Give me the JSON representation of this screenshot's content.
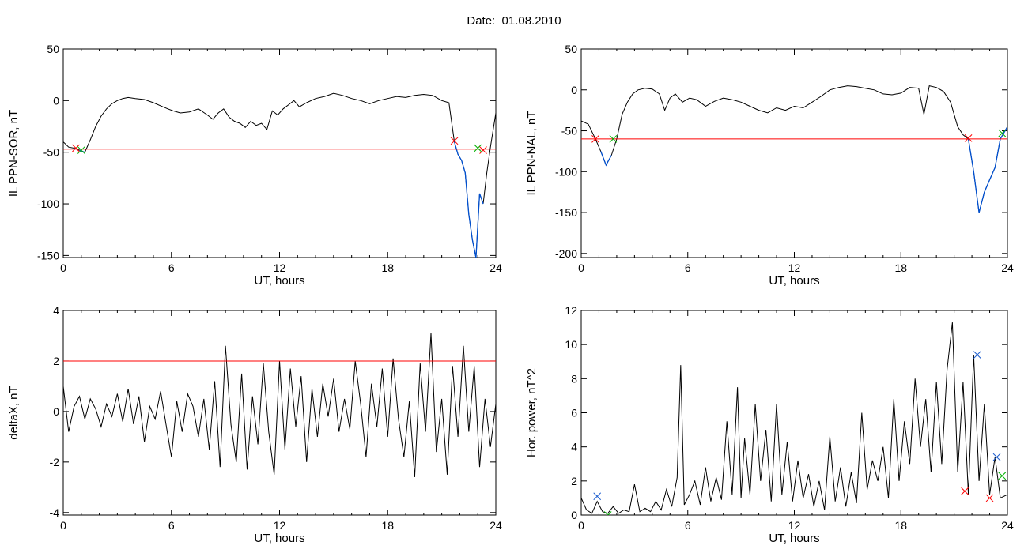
{
  "page": {
    "title": "Date:  01.08.2010"
  },
  "colors": {
    "trace": "#000000",
    "threshold": "#ff0000",
    "onset": "#0050d0",
    "cross_red": "#ff0000",
    "cross_green": "#00b000",
    "cross_blue": "#2060d0",
    "frame": "#000000"
  },
  "chart_data": [
    {
      "type": "line",
      "xlabel": "UT, hours",
      "ylabel": "IL PPN-SOR, nT",
      "xlim": [
        0,
        24
      ],
      "ylim": [
        -152,
        50
      ],
      "xticks": [
        0,
        6,
        12,
        18,
        24
      ],
      "yticks": [
        50,
        0,
        -50,
        -100,
        -150
      ],
      "threshold": -47,
      "series": [
        {
          "x": [
            0,
            0.3,
            0.6,
            0.9,
            1.2,
            1.5,
            1.8,
            2.1,
            2.4,
            2.7,
            3.0,
            3.3,
            3.6,
            4.0,
            4.5,
            5.0,
            5.4,
            5.8,
            6.1,
            6.5,
            7.0,
            7.5,
            8.0,
            8.3,
            8.6,
            8.9,
            9.2,
            9.5,
            9.8,
            10.1,
            10.4,
            10.7,
            11.0,
            11.3,
            11.6,
            11.9,
            12.2,
            12.5,
            12.8,
            13.1,
            13.5,
            14.0,
            14.5,
            15.0,
            15.5,
            16.0,
            16.5,
            17.0,
            17.5,
            18.0,
            18.5,
            19.0,
            19.5,
            20.0,
            20.5,
            21.0,
            21.4,
            21.7,
            21.9,
            22.1,
            22.3,
            22.5,
            22.7,
            22.9,
            23.1,
            23.3,
            23.5,
            23.7,
            24.0
          ],
          "y": [
            -40,
            -45,
            -46,
            -48,
            -50,
            -38,
            -25,
            -15,
            -8,
            -3,
            0,
            2,
            3,
            2,
            1,
            -2,
            -5,
            -8,
            -10,
            -12,
            -11,
            -8,
            -14,
            -18,
            -12,
            -8,
            -16,
            -20,
            -22,
            -26,
            -20,
            -24,
            -22,
            -28,
            -10,
            -14,
            -8,
            -4,
            0,
            -6,
            -2,
            2,
            4,
            7,
            5,
            2,
            0,
            -3,
            0,
            2,
            4,
            3,
            5,
            6,
            5,
            0,
            -2,
            -40,
            -52,
            -58,
            -70,
            -110,
            -135,
            -152,
            -90,
            -100,
            -70,
            -45,
            -12
          ]
        }
      ],
      "onset_segments": [
        [
          0.8,
          1.2
        ],
        [
          21.7,
          23.3
        ]
      ],
      "markers": [
        {
          "x": 0.7,
          "y": -46,
          "color": "red"
        },
        {
          "x": 1.0,
          "y": -48,
          "color": "green"
        },
        {
          "x": 21.7,
          "y": -39,
          "color": "red"
        },
        {
          "x": 23.0,
          "y": -46,
          "color": "green"
        },
        {
          "x": 23.3,
          "y": -48,
          "color": "red"
        }
      ]
    },
    {
      "type": "line",
      "xlabel": "UT, hours",
      "ylabel": "IL PPN-NAL, nT",
      "xlim": [
        0,
        24
      ],
      "ylim": [
        -205,
        50
      ],
      "xticks": [
        0,
        6,
        12,
        18,
        24
      ],
      "yticks": [
        50,
        0,
        -50,
        -100,
        -150,
        -200
      ],
      "threshold": -60,
      "series": [
        {
          "x": [
            0,
            0.4,
            0.8,
            1.1,
            1.4,
            1.7,
            2.0,
            2.3,
            2.6,
            2.9,
            3.2,
            3.6,
            4.0,
            4.4,
            4.7,
            5.0,
            5.3,
            5.7,
            6.1,
            6.5,
            7.0,
            7.5,
            8.0,
            8.5,
            9.0,
            9.5,
            10.0,
            10.5,
            11.0,
            11.5,
            12.0,
            12.5,
            13.0,
            13.5,
            14.0,
            14.5,
            15.0,
            15.5,
            16.0,
            16.5,
            17.0,
            17.5,
            18.0,
            18.5,
            19.0,
            19.3,
            19.6,
            20.0,
            20.4,
            20.8,
            21.2,
            21.5,
            21.8,
            22.1,
            22.4,
            22.7,
            23.0,
            23.3,
            23.6,
            24.0
          ],
          "y": [
            -38,
            -42,
            -60,
            -75,
            -92,
            -80,
            -60,
            -30,
            -15,
            -5,
            0,
            2,
            1,
            -5,
            -25,
            -10,
            -5,
            -15,
            -10,
            -12,
            -20,
            -14,
            -10,
            -12,
            -15,
            -20,
            -25,
            -28,
            -22,
            -25,
            -20,
            -22,
            -15,
            -8,
            0,
            3,
            5,
            4,
            2,
            0,
            -5,
            -6,
            -4,
            3,
            2,
            -30,
            5,
            3,
            -2,
            -15,
            -45,
            -55,
            -60,
            -100,
            -150,
            -125,
            -110,
            -95,
            -60,
            -45
          ]
        }
      ],
      "onset_segments": [
        [
          1.0,
          1.7
        ],
        [
          21.8,
          24.0
        ]
      ],
      "markers": [
        {
          "x": 0.8,
          "y": -60,
          "color": "red"
        },
        {
          "x": 1.8,
          "y": -60,
          "color": "green"
        },
        {
          "x": 21.8,
          "y": -59,
          "color": "red"
        },
        {
          "x": 23.7,
          "y": -53,
          "color": "green"
        }
      ]
    },
    {
      "type": "line",
      "xlabel": "UT, hours",
      "ylabel": "deltaX, nT",
      "xlim": [
        0,
        24
      ],
      "ylim": [
        -4.1,
        4
      ],
      "xticks": [
        0,
        6,
        12,
        18,
        24
      ],
      "yticks": [
        4,
        2,
        0,
        -2,
        -4
      ],
      "threshold": 2,
      "series": [
        {
          "x": [
            0,
            0.3,
            0.6,
            0.9,
            1.2,
            1.5,
            1.8,
            2.1,
            2.4,
            2.7,
            3.0,
            3.3,
            3.6,
            3.9,
            4.2,
            4.5,
            4.8,
            5.1,
            5.4,
            5.7,
            6.0,
            6.3,
            6.6,
            6.9,
            7.2,
            7.5,
            7.8,
            8.1,
            8.4,
            8.7,
            9.0,
            9.3,
            9.6,
            9.9,
            10.2,
            10.5,
            10.8,
            11.1,
            11.4,
            11.7,
            12.0,
            12.3,
            12.6,
            12.9,
            13.2,
            13.5,
            13.8,
            14.1,
            14.4,
            14.7,
            15.0,
            15.3,
            15.6,
            15.9,
            16.2,
            16.5,
            16.8,
            17.1,
            17.4,
            17.7,
            18.0,
            18.3,
            18.6,
            18.9,
            19.2,
            19.5,
            19.8,
            20.1,
            20.4,
            20.7,
            21.0,
            21.3,
            21.6,
            21.9,
            22.2,
            22.5,
            22.8,
            23.1,
            23.4,
            23.7,
            24.0
          ],
          "y": [
            1.0,
            -0.8,
            0.2,
            0.6,
            -0.3,
            0.5,
            0.1,
            -0.6,
            0.3,
            -0.2,
            0.7,
            -0.4,
            0.9,
            -0.5,
            0.6,
            -1.2,
            0.2,
            -0.3,
            0.8,
            -0.5,
            -1.8,
            0.4,
            -0.8,
            0.7,
            0.2,
            -1.0,
            0.5,
            -1.5,
            1.2,
            -2.2,
            2.6,
            -0.5,
            -2.0,
            1.5,
            -2.3,
            0.6,
            -1.3,
            1.9,
            -0.8,
            -2.5,
            2.0,
            -1.5,
            1.7,
            -0.6,
            1.4,
            -2.0,
            0.9,
            -1.0,
            1.1,
            -0.2,
            1.3,
            -0.8,
            0.5,
            -0.7,
            2.0,
            0.3,
            -1.8,
            1.1,
            -0.6,
            1.7,
            -1.0,
            2.1,
            -0.3,
            -1.8,
            0.4,
            -2.6,
            1.9,
            -0.8,
            3.1,
            -1.6,
            0.5,
            -2.5,
            1.8,
            -1.0,
            2.6,
            -0.8,
            1.8,
            -2.2,
            0.5,
            -1.4,
            0.3
          ]
        }
      ],
      "onset_segments": [],
      "markers": []
    },
    {
      "type": "line",
      "xlabel": "UT, hours",
      "ylabel": "Hor. power, nT^2",
      "xlim": [
        0,
        24
      ],
      "ylim": [
        0,
        12
      ],
      "xticks": [
        0,
        6,
        12,
        18,
        24
      ],
      "yticks": [
        12,
        10,
        8,
        6,
        4,
        2,
        0
      ],
      "threshold": null,
      "series": [
        {
          "x": [
            0,
            0.3,
            0.6,
            0.9,
            1.2,
            1.5,
            1.8,
            2.1,
            2.4,
            2.7,
            3.0,
            3.3,
            3.6,
            3.9,
            4.2,
            4.5,
            4.8,
            5.1,
            5.4,
            5.6,
            5.8,
            6.1,
            6.4,
            6.7,
            7.0,
            7.3,
            7.6,
            7.9,
            8.2,
            8.5,
            8.8,
            9.0,
            9.2,
            9.5,
            9.8,
            10.1,
            10.4,
            10.7,
            11.0,
            11.3,
            11.6,
            11.9,
            12.2,
            12.5,
            12.8,
            13.1,
            13.4,
            13.7,
            14.0,
            14.3,
            14.6,
            14.9,
            15.2,
            15.5,
            15.8,
            16.1,
            16.4,
            16.7,
            17.0,
            17.3,
            17.6,
            17.9,
            18.2,
            18.5,
            18.8,
            19.1,
            19.4,
            19.7,
            20.0,
            20.3,
            20.6,
            20.9,
            21.2,
            21.5,
            21.8,
            22.1,
            22.4,
            22.7,
            23.0,
            23.3,
            23.6,
            24.0
          ],
          "y": [
            1.0,
            0.3,
            0.1,
            0.8,
            0.2,
            0.1,
            0.5,
            0.1,
            0.3,
            0.2,
            1.8,
            0.2,
            0.4,
            0.2,
            0.8,
            0.3,
            1.5,
            0.5,
            2.2,
            8.8,
            0.6,
            1.2,
            2.0,
            0.6,
            2.8,
            0.8,
            2.2,
            0.9,
            5.5,
            1.2,
            7.5,
            1.0,
            4.5,
            1.2,
            6.5,
            2.0,
            5.0,
            0.8,
            6.5,
            1.2,
            4.3,
            0.8,
            3.2,
            1.0,
            2.4,
            0.5,
            2.0,
            0.3,
            4.6,
            0.8,
            2.8,
            0.5,
            2.5,
            0.7,
            6.0,
            1.5,
            3.2,
            2.0,
            4.0,
            1.0,
            6.8,
            2.0,
            5.5,
            3.0,
            8.0,
            4.0,
            6.8,
            2.5,
            7.8,
            3.0,
            8.5,
            11.3,
            2.5,
            7.8,
            1.2,
            9.4,
            2.0,
            6.5,
            1.2,
            3.4,
            1.0,
            1.2
          ]
        }
      ],
      "onset_segments": [],
      "markers": [
        {
          "x": 0.9,
          "y": 1.1,
          "color": "blue"
        },
        {
          "x": 1.5,
          "y": 0.0,
          "color": "green"
        },
        {
          "x": 21.6,
          "y": 1.4,
          "color": "red"
        },
        {
          "x": 22.3,
          "y": 9.4,
          "color": "blue"
        },
        {
          "x": 23.0,
          "y": 1.0,
          "color": "red"
        },
        {
          "x": 23.4,
          "y": 3.4,
          "color": "blue"
        },
        {
          "x": 23.7,
          "y": 2.3,
          "color": "green"
        }
      ]
    }
  ]
}
